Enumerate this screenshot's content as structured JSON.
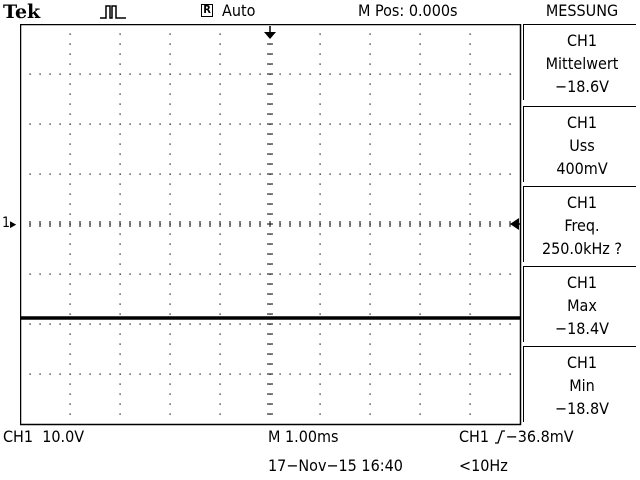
{
  "header": {
    "brand": "Tek",
    "trigger_state_icon": "pulse-icon",
    "acquisition_mode": "Auto",
    "horizontal_position": "M Pos: 0.000s"
  },
  "side_menu": {
    "title": "MESSUNG",
    "measurements": [
      {
        "source": "CH1",
        "type": "Mittelwert",
        "value": "−18.6V"
      },
      {
        "source": "CH1",
        "type": "Uss",
        "value": "400mV"
      },
      {
        "source": "CH1",
        "type": "Freq.",
        "value": "250.0kHz ?"
      },
      {
        "source": "CH1",
        "type": "Max",
        "value": "−18.4V"
      },
      {
        "source": "CH1",
        "type": "Min",
        "value": "−18.8V"
      }
    ]
  },
  "channel_marker": "1",
  "footer": {
    "channel": "CH1",
    "vertical_scale": "10.0V",
    "timebase": "M 1.00ms",
    "trigger_source": "CH1",
    "trigger_level": "−36.8mV",
    "datetime": "17−Nov−15 16:40",
    "trigger_frequency": "<10Hz"
  },
  "colors": {
    "trace": "#000000",
    "grid": "#000000",
    "background": "#ffffff"
  }
}
